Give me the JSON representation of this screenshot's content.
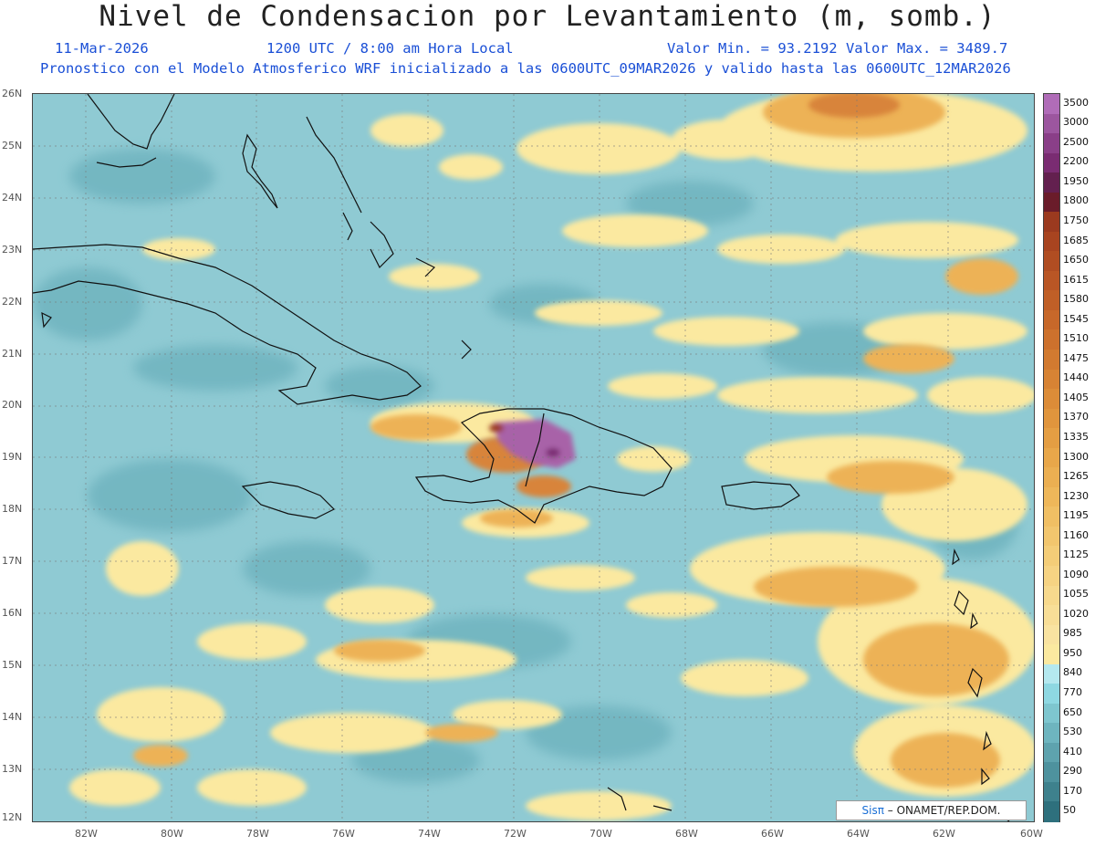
{
  "header": {
    "title": "Nivel de Condensacion por Levantamiento (m, somb.)",
    "date": "11-Mar-2026",
    "time": "1200 UTC / 8:00 am Hora Local",
    "min_max": "Valor Min. = 93.2192  Valor Max. = 3489.7",
    "forecast_note": "Pronostico con el Modelo Atmosferico WRF inicializado a las 0600UTC_09MAR2026 y valido hasta las  0600UTC_12MAR2026"
  },
  "axes": {
    "lat_labels": [
      "26N",
      "25N",
      "24N",
      "23N",
      "22N",
      "21N",
      "20N",
      "19N",
      "18N",
      "17N",
      "16N",
      "15N",
      "14N",
      "13N",
      "12N"
    ],
    "lon_labels": [
      "82W",
      "80W",
      "78W",
      "76W",
      "74W",
      "72W",
      "70W",
      "68W",
      "66W",
      "64W",
      "62W",
      "60W"
    ]
  },
  "colorbar": {
    "labels": [
      "3500",
      "3000",
      "2500",
      "2200",
      "1950",
      "1800",
      "1750",
      "1685",
      "1650",
      "1615",
      "1580",
      "1545",
      "1510",
      "1475",
      "1440",
      "1405",
      "1370",
      "1335",
      "1300",
      "1265",
      "1230",
      "1195",
      "1160",
      "1125",
      "1090",
      "1055",
      "1020",
      "985",
      "950",
      "840",
      "770",
      "650",
      "530",
      "410",
      "290",
      "170",
      "50"
    ],
    "colors": [
      "#b06cb8",
      "#9c569f",
      "#8a3f88",
      "#7a2c72",
      "#63204f",
      "#6a1c2a",
      "#9b3a1f",
      "#a84420",
      "#b04d22",
      "#b95625",
      "#c05f27",
      "#c7682a",
      "#cd712d",
      "#d27a30",
      "#d78334",
      "#dc8c38",
      "#e0953d",
      "#e49e43",
      "#e8a74a",
      "#ebaf52",
      "#eeb75a",
      "#f0bf64",
      "#f2c66e",
      "#f4cd78",
      "#f6d383",
      "#f7d98d",
      "#f8de97",
      "#f9e3a1",
      "#fbe9a0",
      "#b4e8ef",
      "#8ed8e2",
      "#7ec6cf",
      "#6eb5bf",
      "#5ea3ae",
      "#4e929e",
      "#3e818d",
      "#2e707d"
    ]
  },
  "credit": {
    "logo": "Sisπ",
    "text": "– ONAMET/REP.DOM."
  }
}
